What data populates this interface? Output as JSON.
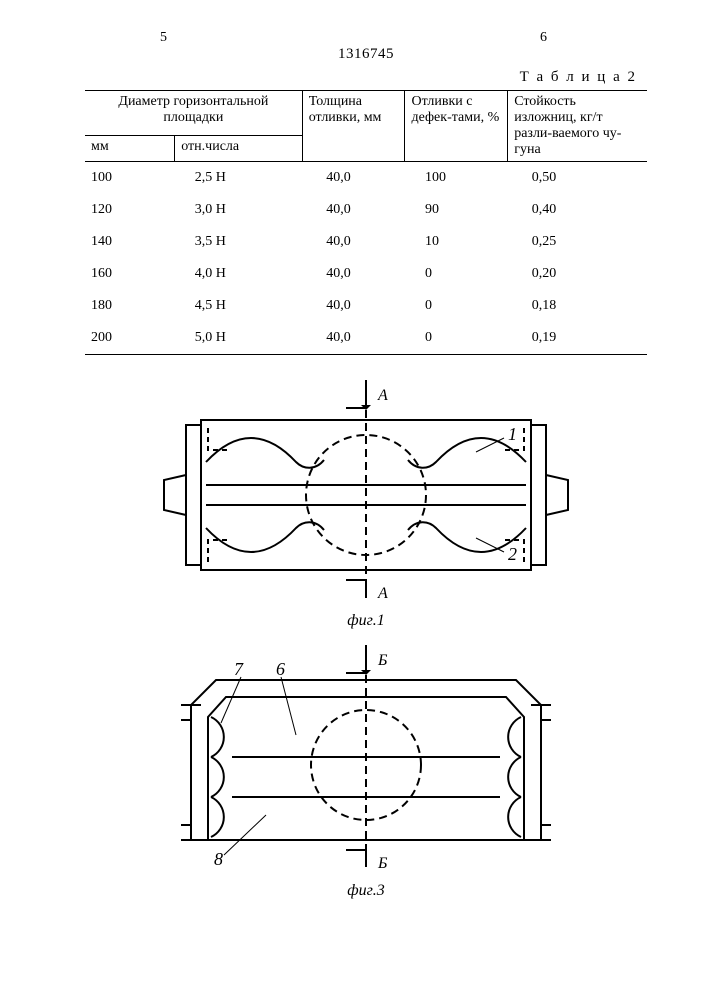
{
  "header": {
    "left_page_num": "5",
    "right_page_num": "6",
    "doc_number": "1316745"
  },
  "table": {
    "caption": "Т а б л и ц а 2",
    "columns": {
      "col1_group": "Диаметр горизонтальной площадки",
      "col1a": "мм",
      "col1b": "отн.числа",
      "col2": "Толщина отливки, мм",
      "col3": "Отливки с дефек-тами, %",
      "col4": "Стойкость изложниц, кг/т разли-ваемого чу-гуна"
    },
    "rows": [
      {
        "d_mm": "100",
        "d_rel": "2,5 Н",
        "thk": "40,0",
        "def": "100",
        "life": "0,50"
      },
      {
        "d_mm": "120",
        "d_rel": "3,0 Н",
        "thk": "40,0",
        "def": "90",
        "life": "0,40"
      },
      {
        "d_mm": "140",
        "d_rel": "3,5 Н",
        "thk": "40,0",
        "def": "10",
        "life": "0,25"
      },
      {
        "d_mm": "160",
        "d_rel": "4,0 Н",
        "thk": "40,0",
        "def": "0",
        "life": "0,20"
      },
      {
        "d_mm": "180",
        "d_rel": "4,5 Н",
        "thk": "40,0",
        "def": "0",
        "life": "0,18"
      },
      {
        "d_mm": "200",
        "d_rel": "5,0 Н",
        "thk": "40,0",
        "def": "0",
        "life": "0,19"
      }
    ]
  },
  "figures": {
    "fig1": {
      "label": "фиг.1",
      "section_letter": "А",
      "ref_labels": {
        "1": "1",
        "2": "2"
      },
      "stroke": "#000000",
      "dash": "6,4",
      "bg": "#ffffff"
    },
    "fig3": {
      "label": "фиг.3",
      "section_letter": "Б",
      "ref_labels": {
        "6": "6",
        "7": "7",
        "8": "8"
      },
      "stroke": "#000000",
      "dash": "6,4",
      "bg": "#ffffff"
    }
  }
}
